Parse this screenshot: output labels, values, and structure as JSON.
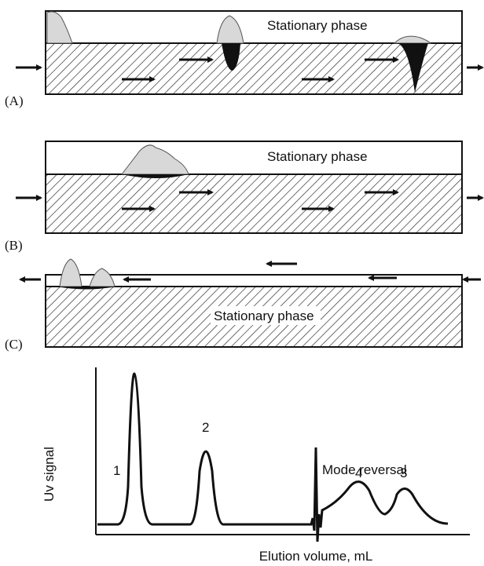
{
  "panels": [
    {
      "label": "(A)",
      "phase_label": "Stationary phase"
    },
    {
      "label": "(B)",
      "phase_label": "Stationary phase"
    },
    {
      "label": "(C)",
      "phase_label": "Stationary phase"
    }
  ],
  "chromatogram": {
    "y_axis_label": "Uv signal",
    "x_axis_label": "Elution volume, mL",
    "annotation": "Mode reversal",
    "peaks": [
      {
        "label": "1"
      },
      {
        "label": "2"
      },
      {
        "label": "4"
      },
      {
        "label": "3"
      }
    ]
  }
}
